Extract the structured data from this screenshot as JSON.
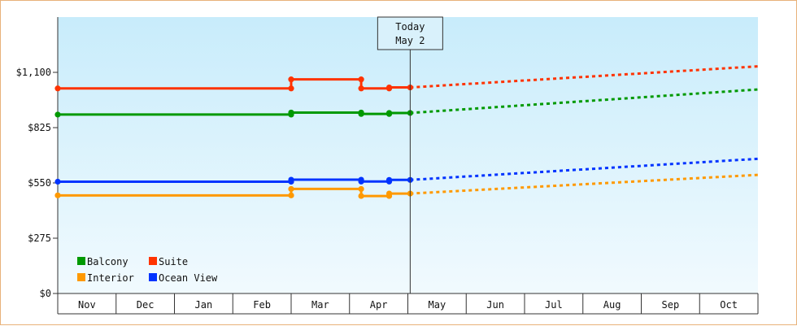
{
  "chart_data": {
    "type": "line",
    "x": [
      "Nov",
      "Dec",
      "Jan",
      "Feb",
      "Mar",
      "Apr",
      "May",
      "Jun",
      "Jul",
      "Aug",
      "Sep",
      "Oct"
    ],
    "ylim": [
      0,
      1375
    ],
    "yticks": [
      {
        "value": 0,
        "label": "$0"
      },
      {
        "value": 275,
        "label": "$275"
      },
      {
        "value": 550,
        "label": "$550"
      },
      {
        "value": 825,
        "label": "$825"
      },
      {
        "value": 1100,
        "label": "$1,100"
      }
    ],
    "today": {
      "line1": "Today",
      "line2": "May 2",
      "x": 6.04
    },
    "series": [
      {
        "name": "Suite",
        "color": "#ff3300",
        "history": [
          [
            0,
            1020
          ],
          [
            4.0,
            1020
          ],
          [
            4.0,
            1065
          ],
          [
            5.2,
            1065
          ],
          [
            5.2,
            1020
          ],
          [
            5.68,
            1020
          ],
          [
            5.68,
            1025
          ],
          [
            6.04,
            1025
          ]
        ],
        "markers": [
          0,
          4.0,
          5.2,
          5.68,
          6.04
        ],
        "forecast": [
          [
            6.04,
            1025
          ],
          [
            12,
            1130
          ]
        ]
      },
      {
        "name": "Balcony",
        "color": "#009900",
        "history": [
          [
            0,
            890
          ],
          [
            4.0,
            890
          ],
          [
            4.0,
            900
          ],
          [
            5.2,
            900
          ],
          [
            5.2,
            893
          ],
          [
            5.68,
            893
          ],
          [
            5.68,
            898
          ],
          [
            6.04,
            898
          ]
        ],
        "markers": [
          0,
          4.0,
          5.2,
          5.68,
          6.04
        ],
        "forecast": [
          [
            6.04,
            898
          ],
          [
            12,
            1015
          ]
        ]
      },
      {
        "name": "Ocean View",
        "color": "#0033ff",
        "history": [
          [
            0,
            556
          ],
          [
            4.0,
            556
          ],
          [
            4.0,
            566
          ],
          [
            5.2,
            566
          ],
          [
            5.2,
            557
          ],
          [
            5.68,
            557
          ],
          [
            5.68,
            565
          ],
          [
            6.04,
            565
          ]
        ],
        "markers": [
          0,
          4.0,
          5.2,
          5.68,
          6.04
        ],
        "forecast": [
          [
            6.04,
            565
          ],
          [
            12,
            670
          ]
        ]
      },
      {
        "name": "Interior",
        "color": "#ff9900",
        "history": [
          [
            0,
            488
          ],
          [
            4.0,
            488
          ],
          [
            4.0,
            520
          ],
          [
            5.2,
            520
          ],
          [
            5.2,
            485
          ],
          [
            5.68,
            485
          ],
          [
            5.68,
            497
          ],
          [
            6.04,
            497
          ]
        ],
        "markers": [
          0,
          4.0,
          5.2,
          5.68,
          6.04
        ],
        "forecast": [
          [
            6.04,
            497
          ],
          [
            12,
            590
          ]
        ]
      }
    ],
    "legend": {
      "placement": "bottom-left",
      "items": [
        {
          "label": "Balcony",
          "color": "#009900"
        },
        {
          "label": "Suite",
          "color": "#ff3300"
        },
        {
          "label": "Interior",
          "color": "#ff9900"
        },
        {
          "label": "Ocean View",
          "color": "#0033ff"
        }
      ]
    },
    "grid": false
  }
}
